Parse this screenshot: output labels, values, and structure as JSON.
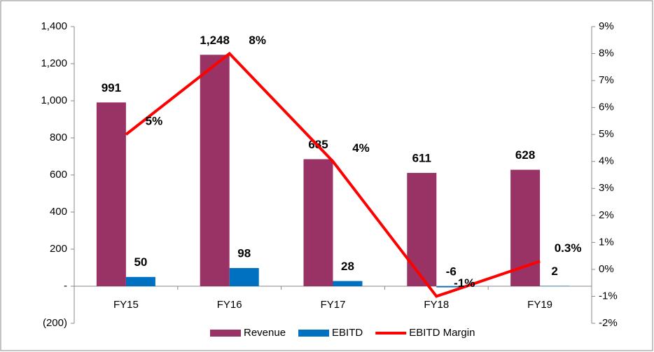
{
  "chart_data": {
    "type": "bar_line",
    "categories": [
      "FY15",
      "FY16",
      "FY17",
      "FY18",
      "FY19"
    ],
    "series": [
      {
        "name": "Revenue",
        "color": "#993366",
        "values": [
          991,
          1248,
          685,
          611,
          628
        ],
        "value_labels": [
          "991",
          "1,248",
          "685",
          "611",
          "628"
        ]
      },
      {
        "name": "EBITD",
        "color": "#0070c0",
        "values": [
          50,
          98,
          28,
          -6,
          2
        ]
      },
      {
        "name": "EBITD Margin",
        "color": "#ff0000",
        "axis": "y2",
        "values": [
          5,
          8,
          4,
          -1,
          0.3
        ],
        "value_labels": [
          "5%",
          "8%",
          "4%",
          "-1%",
          "0.3%"
        ]
      }
    ],
    "ylim": [
      -200,
      1400
    ],
    "yticks": [
      {
        "value": -200,
        "label": "(200)"
      },
      {
        "value": 0,
        "label": "-"
      },
      200,
      400,
      600,
      800,
      {
        "value": 1000,
        "label": "1,000"
      },
      {
        "value": 1200,
        "label": "1,200"
      },
      {
        "value": 1400,
        "label": "1,400"
      }
    ],
    "y2lim": [
      -2,
      9
    ],
    "y2ticks": [
      {
        "value": -2,
        "label": "-2%"
      },
      {
        "value": -1,
        "label": "-1%"
      },
      {
        "value": 0,
        "label": "0%"
      },
      {
        "value": 1,
        "label": "1%"
      },
      {
        "value": 2,
        "label": "2%"
      },
      {
        "value": 3,
        "label": "3%"
      },
      {
        "value": 4,
        "label": "4%"
      },
      {
        "value": 5,
        "label": "5%"
      },
      {
        "value": 6,
        "label": "6%"
      },
      {
        "value": 7,
        "label": "7%"
      },
      {
        "value": 8,
        "label": "8%"
      },
      {
        "value": 9,
        "label": "9%"
      }
    ],
    "legend": "bottom"
  }
}
